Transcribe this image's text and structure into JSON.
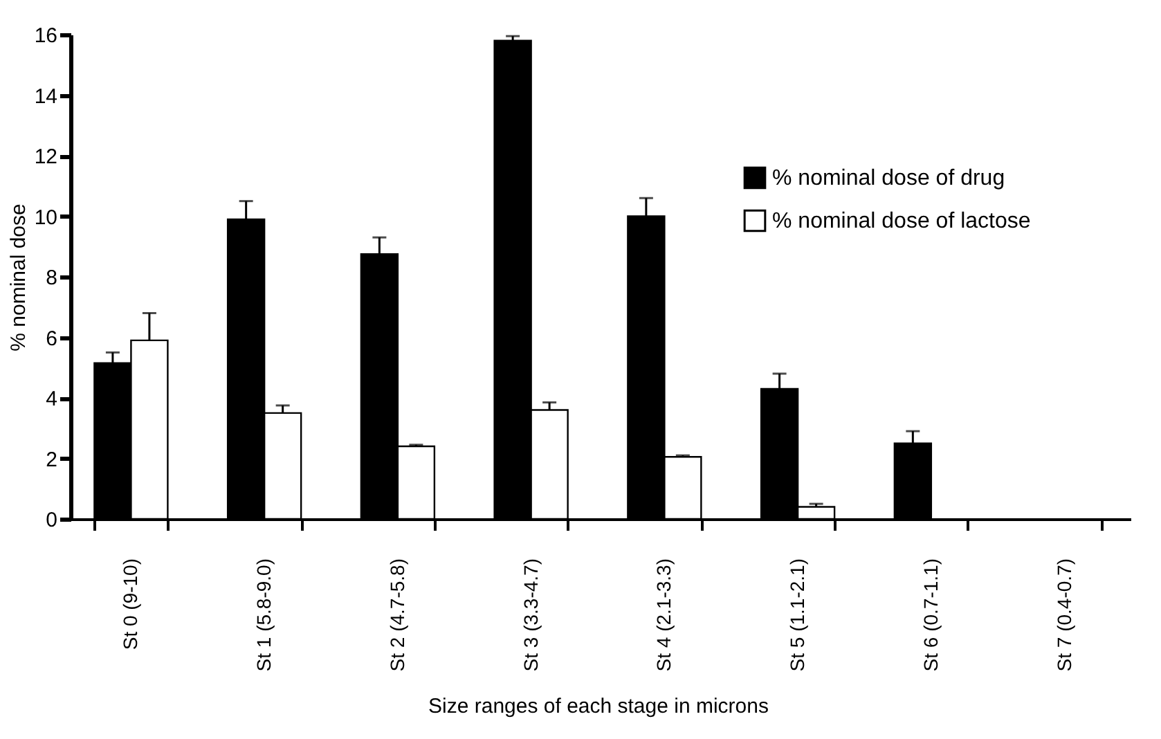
{
  "chart_data": {
    "type": "bar",
    "xlabel": "Size ranges of each stage in microns",
    "ylabel": "% nominal dose",
    "categories": [
      "St 0 (9-10)",
      "St 1 (5.8-9.0)",
      "St 2 (4.7-5.8)",
      "St 3 (3.3-4.7)",
      "St 4 (2.1-3.3)",
      "St 5 (1.1-2.1)",
      "St 6 (0.7-1.1)",
      "St 7 (0.4-0.7)"
    ],
    "series": [
      {
        "name": "% nominal dose of drug",
        "color": "#000000",
        "values": [
          5.15,
          9.9,
          8.75,
          15.8,
          10.0,
          4.3,
          2.5,
          0
        ],
        "errors": [
          [
            5.15,
            5.5
          ],
          [
            9.9,
            10.5
          ],
          [
            8.75,
            9.3
          ],
          [
            15.8,
            15.95
          ],
          [
            10.0,
            10.6
          ],
          [
            4.3,
            4.8
          ],
          [
            2.5,
            2.9
          ],
          null
        ]
      },
      {
        "name": "% nominal dose of lactose",
        "color": "#ffffff",
        "values": [
          5.9,
          3.5,
          2.4,
          3.6,
          2.05,
          0.4,
          0,
          0
        ],
        "errors": [
          [
            5.9,
            6.8
          ],
          [
            3.5,
            3.75
          ],
          [
            2.4,
            2.45
          ],
          [
            3.6,
            3.85
          ],
          [
            2.05,
            2.1
          ],
          [
            0.4,
            0.5
          ],
          null,
          null
        ]
      }
    ],
    "ylim": [
      0,
      16
    ],
    "yticks": [
      0,
      2,
      4,
      6,
      8,
      10,
      12,
      14,
      16
    ],
    "grid": false,
    "legend": "top right"
  }
}
